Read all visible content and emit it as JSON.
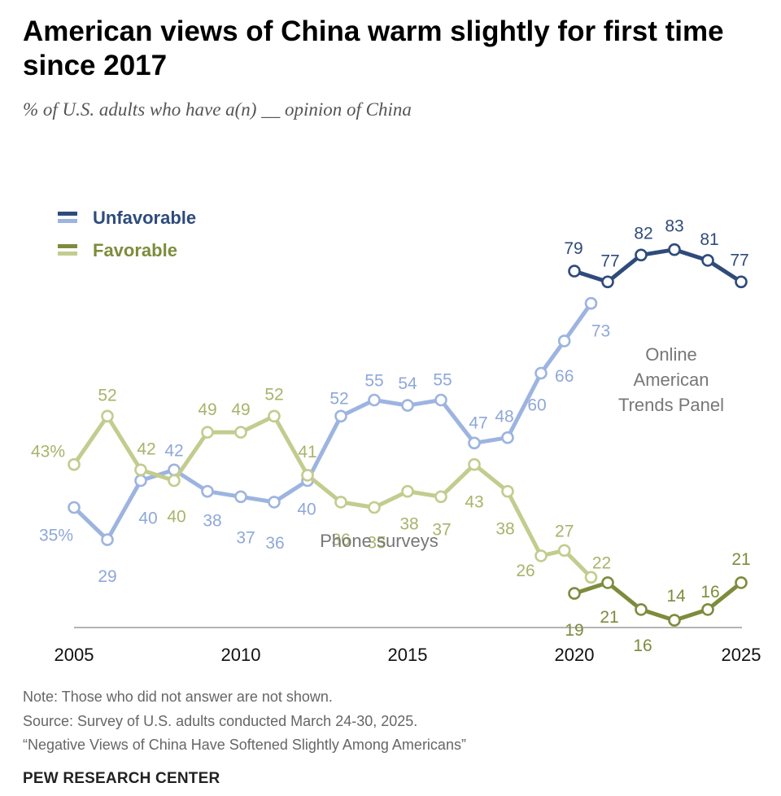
{
  "title": "American views of China warm slightly for first time since 2017",
  "subtitle": "% of U.S. adults who have a(n) __ opinion of China",
  "chart_data": {
    "type": "line",
    "x_ticks": [
      "2005",
      "2010",
      "2015",
      "2020",
      "2025"
    ],
    "legend": [
      {
        "label": "Unfavorable",
        "color": "#2f4b7c"
      },
      {
        "label": "Favorable",
        "color": "#7d8c3c"
      }
    ],
    "annotations": {
      "phone": "Phone surveys",
      "online": [
        "Online",
        "American",
        "Trends Panel"
      ]
    },
    "series": [
      {
        "name": "Unfavorable",
        "mode": "Phone surveys",
        "color": "#9db4e0",
        "label_color": "#8fa8d8",
        "points": [
          {
            "x": 2005,
            "y": 35,
            "label": "35%"
          },
          {
            "x": 2006,
            "y": 29,
            "label": "29"
          },
          {
            "x": 2007,
            "y": 40,
            "label": "40"
          },
          {
            "x": 2008,
            "y": 42,
            "label": "42"
          },
          {
            "x": 2009,
            "y": 38,
            "label": "38"
          },
          {
            "x": 2010,
            "y": 37,
            "label": "37"
          },
          {
            "x": 2011,
            "y": 36,
            "label": "36"
          },
          {
            "x": 2012,
            "y": 40,
            "label": "40"
          },
          {
            "x": 2013,
            "y": 52,
            "label": "52"
          },
          {
            "x": 2014,
            "y": 55,
            "label": "55"
          },
          {
            "x": 2015,
            "y": 54,
            "label": "54"
          },
          {
            "x": 2016,
            "y": 55,
            "label": "55"
          },
          {
            "x": 2017,
            "y": 47,
            "label": "47"
          },
          {
            "x": 2018,
            "y": 48,
            "label": "48"
          },
          {
            "x": 2019,
            "y": 60,
            "label": "60"
          },
          {
            "x": 2019.7,
            "y": 66,
            "label": "66"
          },
          {
            "x": 2020.5,
            "y": 73,
            "label": "73"
          }
        ]
      },
      {
        "name": "Favorable",
        "mode": "Phone surveys",
        "color": "#c3cc8e",
        "label_color": "#a9b36a",
        "points": [
          {
            "x": 2005,
            "y": 43,
            "label": "43%"
          },
          {
            "x": 2006,
            "y": 52,
            "label": "52"
          },
          {
            "x": 2007,
            "y": 42,
            "label": "42"
          },
          {
            "x": 2008,
            "y": 40,
            "label": "40"
          },
          {
            "x": 2009,
            "y": 49,
            "label": "49"
          },
          {
            "x": 2010,
            "y": 49,
            "label": "49"
          },
          {
            "x": 2011,
            "y": 52,
            "label": "52"
          },
          {
            "x": 2012,
            "y": 41,
            "label": "41"
          },
          {
            "x": 2013,
            "y": 36,
            "label": "36"
          },
          {
            "x": 2014,
            "y": 35,
            "label": "35"
          },
          {
            "x": 2015,
            "y": 38,
            "label": "38"
          },
          {
            "x": 2016,
            "y": 37,
            "label": "37"
          },
          {
            "x": 2017,
            "y": 43,
            "label": "43"
          },
          {
            "x": 2018,
            "y": 38,
            "label": "38"
          },
          {
            "x": 2019,
            "y": 26,
            "label": "26"
          },
          {
            "x": 2019.7,
            "y": 27,
            "label": "27"
          },
          {
            "x": 2020.5,
            "y": 22,
            "label": "22"
          }
        ]
      },
      {
        "name": "Unfavorable",
        "mode": "Online American Trends Panel",
        "color": "#2f4b7c",
        "label_color": "#2f4b7c",
        "points": [
          {
            "x": 2020,
            "y": 79,
            "label": "79"
          },
          {
            "x": 2021,
            "y": 77,
            "label": "77"
          },
          {
            "x": 2022,
            "y": 82,
            "label": "82"
          },
          {
            "x": 2023,
            "y": 83,
            "label": "83"
          },
          {
            "x": 2024,
            "y": 81,
            "label": "81"
          },
          {
            "x": 2025,
            "y": 77,
            "label": "77"
          }
        ]
      },
      {
        "name": "Favorable",
        "mode": "Online American Trends Panel",
        "color": "#7d8c3c",
        "label_color": "#7d8c3c",
        "points": [
          {
            "x": 2020,
            "y": 19,
            "label": "19"
          },
          {
            "x": 2021,
            "y": 21,
            "label": "21"
          },
          {
            "x": 2022,
            "y": 16,
            "label": "16"
          },
          {
            "x": 2023,
            "y": 14,
            "label": "14"
          },
          {
            "x": 2024,
            "y": 16,
            "label": "16"
          },
          {
            "x": 2025,
            "y": 21,
            "label": "21"
          }
        ]
      }
    ]
  },
  "footer": {
    "note": "Note: Those who did not answer are not shown.",
    "source": "Source: Survey of U.S. adults conducted March 24-30, 2025.",
    "report": "“Negative Views of China Have Softened Slightly Among Americans”",
    "brand": "PEW RESEARCH CENTER"
  }
}
